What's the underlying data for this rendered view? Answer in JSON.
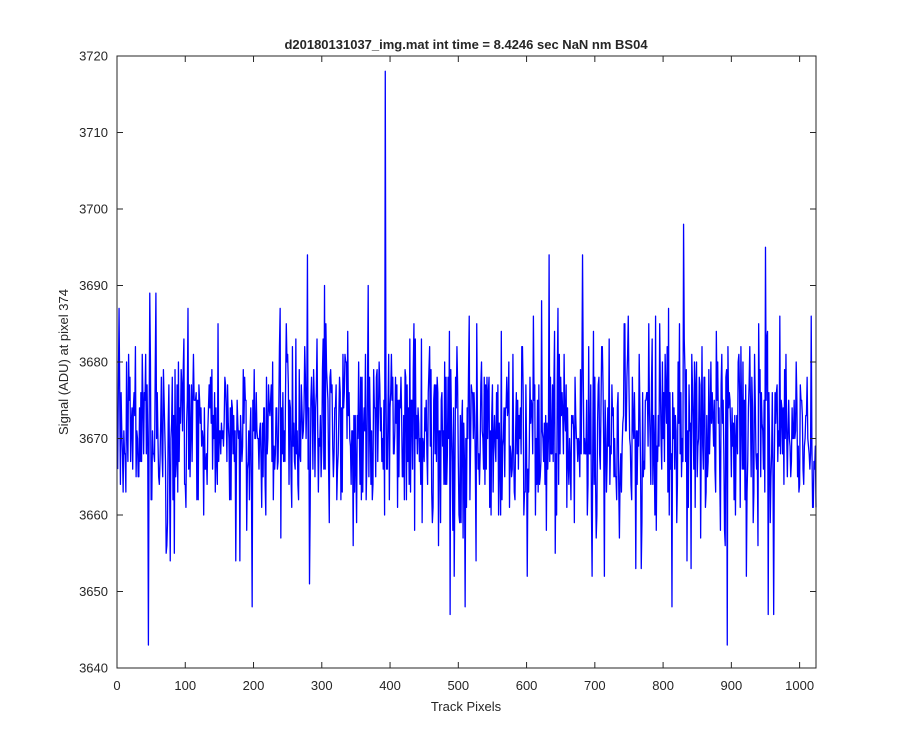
{
  "chart_data": {
    "type": "line",
    "title": "d20180131037_img.mat int time = 8.4246 sec  NaN nm BS04",
    "xlabel": "Track Pixels",
    "ylabel": "Signal (ADU) at pixel 374",
    "xlim": [
      0,
      1024
    ],
    "ylim": [
      3640,
      3720
    ],
    "xticks": [
      0,
      100,
      200,
      300,
      400,
      500,
      600,
      700,
      800,
      900,
      1000
    ],
    "yticks": [
      3640,
      3650,
      3660,
      3670,
      3680,
      3690,
      3700,
      3710,
      3720
    ],
    "grid": false,
    "series": [
      {
        "color": "#0000ff",
        "x_start": 1,
        "x_step": 1,
        "y_mean": 3671,
        "y_noise_sd": 7,
        "n_points": 1024,
        "notable_points": [
          {
            "x": 3,
            "y": 3687
          },
          {
            "x": 46,
            "y": 3643
          },
          {
            "x": 48,
            "y": 3689
          },
          {
            "x": 198,
            "y": 3648
          },
          {
            "x": 279,
            "y": 3694
          },
          {
            "x": 282,
            "y": 3651
          },
          {
            "x": 393,
            "y": 3718
          },
          {
            "x": 488,
            "y": 3647
          },
          {
            "x": 510,
            "y": 3648
          },
          {
            "x": 633,
            "y": 3694
          },
          {
            "x": 682,
            "y": 3694
          },
          {
            "x": 768,
            "y": 3653
          },
          {
            "x": 813,
            "y": 3648
          },
          {
            "x": 830,
            "y": 3698
          },
          {
            "x": 894,
            "y": 3643
          },
          {
            "x": 950,
            "y": 3695
          },
          {
            "x": 954,
            "y": 3647
          },
          {
            "x": 962,
            "y": 3647
          },
          {
            "x": 1017,
            "y": 3686
          }
        ]
      }
    ]
  }
}
